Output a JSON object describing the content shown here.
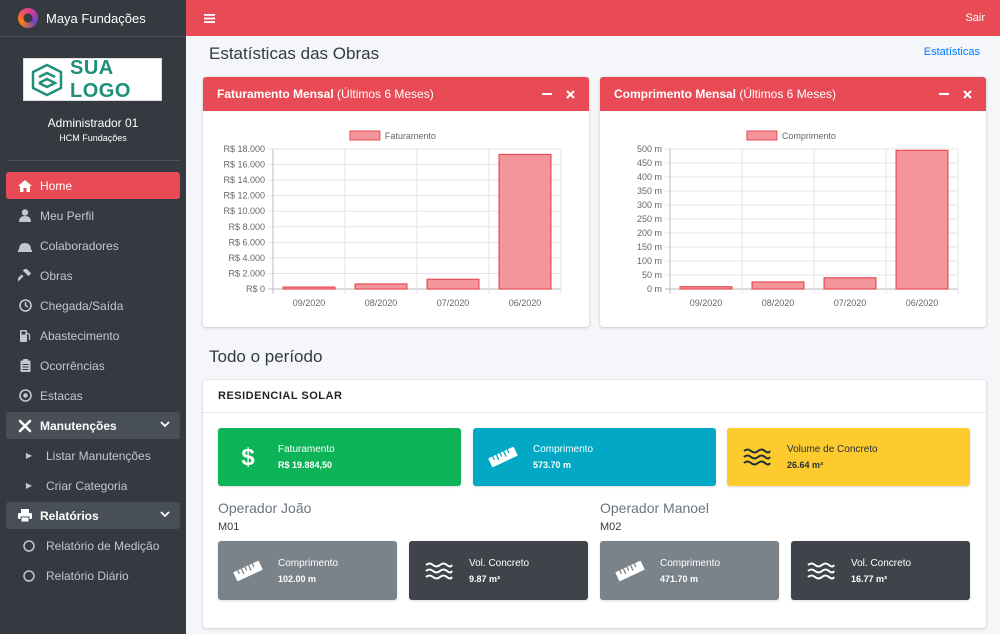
{
  "app": {
    "brand": "Maya Fundações",
    "logo_text": "SUA LOGO"
  },
  "user": {
    "name": "Administrador 01",
    "company": "HCM Fundações"
  },
  "sidebar": {
    "items": [
      {
        "label": "Home",
        "icon": "home-icon"
      },
      {
        "label": "Meu Perfil",
        "icon": "user-icon"
      },
      {
        "label": "Colaboradores",
        "icon": "users-icon"
      },
      {
        "label": "Obras",
        "icon": "hammer-icon"
      },
      {
        "label": "Chegada/Saída",
        "icon": "clock-icon"
      },
      {
        "label": "Abastecimento",
        "icon": "gas-pump-icon"
      },
      {
        "label": "Ocorrências",
        "icon": "clipboard-icon"
      },
      {
        "label": "Estacas",
        "icon": "dot-circle-icon"
      }
    ],
    "manutencoes": {
      "label": "Manutenções",
      "subitems": [
        "Listar Manutenções",
        "Criar Categoria"
      ]
    },
    "relatorios": {
      "label": "Relatórios",
      "subitems": [
        "Relatório de Medição",
        "Relatório Diário"
      ]
    }
  },
  "topbar": {
    "logout": "Sair"
  },
  "page": {
    "title": "Estatísticas das Obras",
    "breadcrumb": "Estatísticas",
    "section_title": "Todo o período"
  },
  "charts": {
    "revenue": {
      "title_bold": "Faturamento Mensal",
      "title_rest": " (Últimos 6 Meses)"
    },
    "length": {
      "title_bold": "Comprimento Mensal",
      "title_rest": " (Últimos 6 Meses)"
    }
  },
  "chart_data": [
    {
      "type": "bar",
      "title": "",
      "categories": [
        "09/2020",
        "08/2020",
        "07/2020",
        "06/2020"
      ],
      "series": [
        {
          "name": "Faturamento",
          "values": [
            250,
            650,
            1250,
            17300
          ]
        }
      ],
      "ylim": [
        0,
        18000
      ],
      "yticks": [
        "R$ 0",
        "R$ 2.000",
        "R$ 4.000",
        "R$ 6.000",
        "R$ 8.000",
        "R$ 10.000",
        "R$ 12.000",
        "R$ 14.000",
        "R$ 16.000",
        "R$ 18.000"
      ],
      "legend": "top",
      "grid": true,
      "color": "#f4959b"
    },
    {
      "type": "bar",
      "title": "",
      "categories": [
        "09/2020",
        "08/2020",
        "07/2020",
        "06/2020"
      ],
      "series": [
        {
          "name": "Comprimento",
          "values": [
            8,
            25,
            40,
            495
          ]
        }
      ],
      "ylim": [
        0,
        500
      ],
      "yticks": [
        "0 m",
        "50 m",
        "100 m",
        "150 m",
        "200 m",
        "250 m",
        "300 m",
        "350 m",
        "400 m",
        "450 m",
        "500 m"
      ],
      "legend": "top",
      "grid": true,
      "color": "#f4959b"
    }
  ],
  "project": {
    "name": "RESIDENCIAL SOLAR",
    "boxes": [
      {
        "label": "Faturamento",
        "value": "R$ 19.884,50",
        "icon": "dollar-icon"
      },
      {
        "label": "Comprimento",
        "value": "573.70 m",
        "icon": "ruler-icon"
      },
      {
        "label": "Volume de Concreto",
        "value": "26.64 m³",
        "icon": "water-icon"
      }
    ],
    "operators": [
      {
        "name": "Operador João",
        "code": "M01",
        "length_label": "Comprimento",
        "length": "102.00 m",
        "volume_label": "Vol. Concreto",
        "volume": "9.87 m³"
      },
      {
        "name": "Operador Manoel",
        "code": "M02",
        "length_label": "Comprimento",
        "length": "471.70 m",
        "volume_label": "Vol. Concreto",
        "volume": "16.77 m³"
      }
    ]
  },
  "colors": {
    "accent": "#e84b55",
    "sidebar": "#343a40",
    "green": "#0cb457",
    "cyan": "#03a9c4",
    "yellow": "#fecb2e"
  }
}
